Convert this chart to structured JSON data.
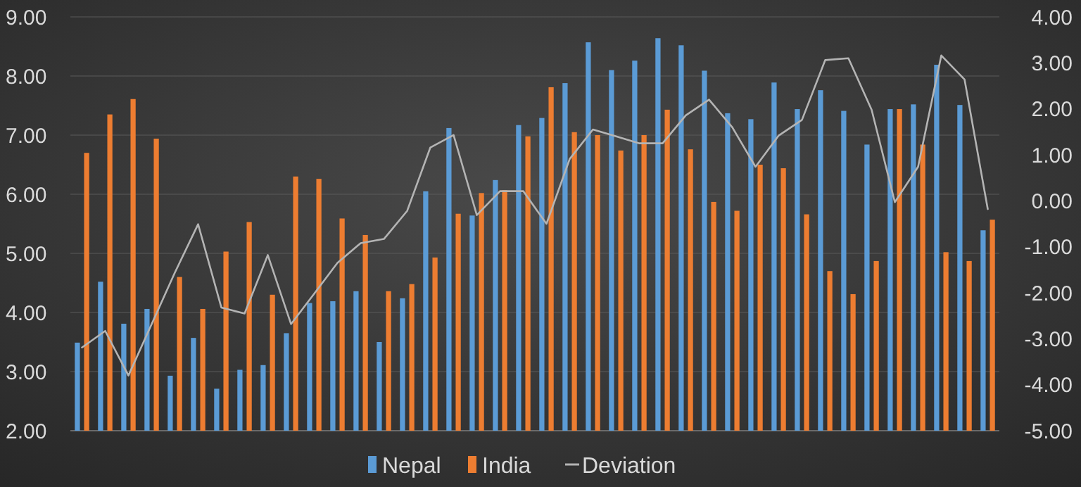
{
  "chart_data": {
    "type": "bar",
    "categories": [
      null,
      null,
      null,
      null,
      null,
      null,
      null,
      null,
      null,
      null,
      null,
      null,
      null,
      null,
      null,
      null,
      null,
      null,
      null,
      null,
      null,
      null,
      null,
      null,
      null,
      null,
      null,
      null,
      null,
      null,
      null,
      null,
      null,
      null,
      null,
      null,
      null,
      null,
      null,
      null
    ],
    "series": [
      {
        "name": "Nepal",
        "color": "#5b9bd5",
        "values": [
          3.49,
          4.52,
          3.81,
          4.06,
          2.93,
          3.57,
          2.71,
          3.03,
          3.11,
          3.65,
          4.16,
          4.19,
          4.36,
          3.5,
          4.24,
          6.05,
          7.12,
          5.64,
          6.24,
          7.17,
          7.29,
          7.88,
          8.57,
          8.1,
          8.26,
          8.64,
          8.52,
          8.09,
          7.37,
          7.27,
          7.89,
          7.44,
          7.76,
          7.41,
          6.84,
          7.44,
          7.52,
          8.19,
          7.51,
          5.39
        ]
      },
      {
        "name": "India",
        "color": "#ed7d31",
        "values": [
          6.7,
          7.35,
          7.61,
          6.94,
          4.6,
          4.06,
          5.03,
          5.53,
          4.3,
          6.3,
          6.26,
          5.59,
          5.31,
          4.36,
          4.48,
          4.93,
          5.67,
          6.02,
          6.07,
          6.98,
          7.81,
          7.05,
          7.0,
          6.74,
          7.0,
          7.43,
          6.76,
          5.87,
          5.72,
          6.5,
          6.44,
          5.66,
          4.7,
          4.31,
          4.87,
          7.44,
          6.84,
          5.02,
          4.87,
          5.57
        ]
      },
      {
        "name": "Deviation",
        "type": "line",
        "axis": "y2",
        "color": "#b4b4b4",
        "values": [
          -3.19,
          -2.83,
          -3.8,
          -2.68,
          -1.56,
          -0.51,
          -2.32,
          -2.45,
          -1.18,
          -2.68,
          -2.02,
          -1.35,
          -0.92,
          -0.83,
          -0.22,
          1.16,
          1.43,
          -0.31,
          0.21,
          0.21,
          -0.5,
          0.91,
          1.55,
          1.4,
          1.25,
          1.25,
          1.86,
          2.2,
          1.6,
          0.74,
          1.42,
          1.76,
          3.06,
          3.1,
          1.98,
          -0.03,
          0.74,
          3.16,
          2.64,
          -0.18
        ]
      }
    ],
    "ylim": [
      2,
      9
    ],
    "yticks": [
      {
        "value": 2,
        "label": "2.00"
      },
      {
        "value": 3,
        "label": "3.00"
      },
      {
        "value": 4,
        "label": "4.00"
      },
      {
        "value": 5,
        "label": "5.00"
      },
      {
        "value": 6,
        "label": "6.00"
      },
      {
        "value": 7,
        "label": "7.00"
      },
      {
        "value": 8,
        "label": "8.00"
      },
      {
        "value": 9,
        "label": "9.00"
      }
    ],
    "y2lim": [
      -5,
      4
    ],
    "y2ticks": [
      {
        "value": -5,
        "label": "-5.00"
      },
      {
        "value": -4,
        "label": "-4.00"
      },
      {
        "value": -3,
        "label": "-3.00"
      },
      {
        "value": -2,
        "label": "-2.00"
      },
      {
        "value": -1,
        "label": "-1.00"
      },
      {
        "value": 0,
        "label": "0.00"
      },
      {
        "value": 1,
        "label": "1.00"
      },
      {
        "value": 2,
        "label": "2.00"
      },
      {
        "value": 3,
        "label": "3.00"
      },
      {
        "value": 4,
        "label": "4.00"
      }
    ],
    "grid": "y",
    "legend": "bottom",
    "marker": "none"
  }
}
